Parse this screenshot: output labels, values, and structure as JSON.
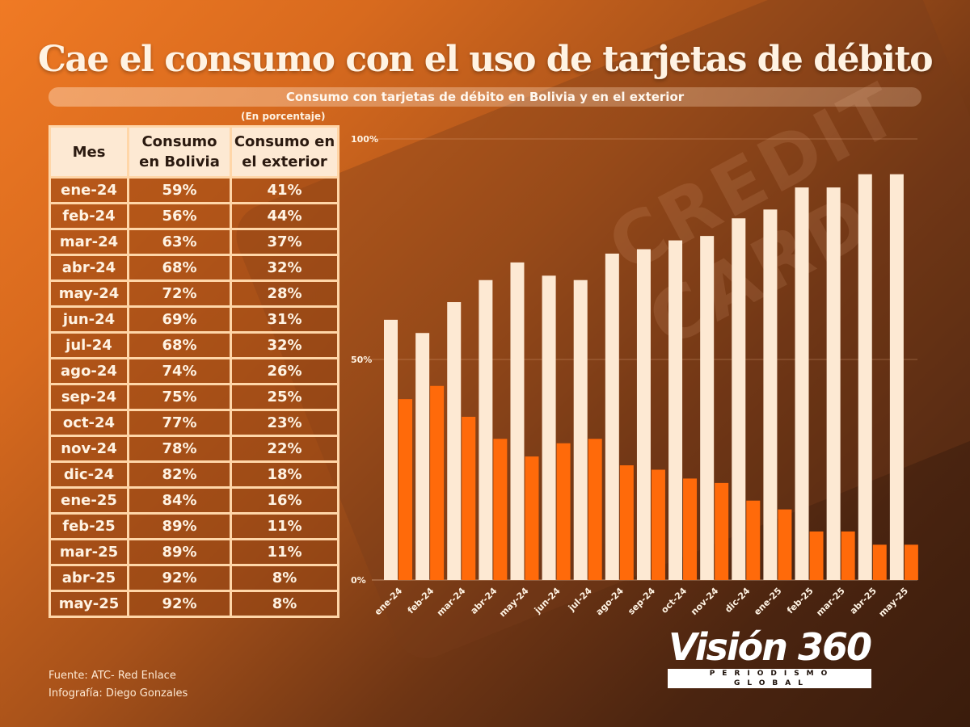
{
  "title": "Cae el consumo con el uso de tarjetas de débito",
  "subtitle": "Consumo con tarjetas de débito en Bolivia y en el exterior",
  "unit_note": "(En porcentaje)",
  "table": {
    "headers": [
      "Mes",
      "Consumo en Bolivia",
      "Consumo en el exterior"
    ],
    "rows": [
      [
        "ene-24",
        "59%",
        "41%"
      ],
      [
        "feb-24",
        "56%",
        "44%"
      ],
      [
        "mar-24",
        "63%",
        "37%"
      ],
      [
        "abr-24",
        "68%",
        "32%"
      ],
      [
        "may-24",
        "72%",
        "28%"
      ],
      [
        "jun-24",
        "69%",
        "31%"
      ],
      [
        "jul-24",
        "68%",
        "32%"
      ],
      [
        "ago-24",
        "74%",
        "26%"
      ],
      [
        "sep-24",
        "75%",
        "25%"
      ],
      [
        "oct-24",
        "77%",
        "23%"
      ],
      [
        "nov-24",
        "78%",
        "22%"
      ],
      [
        "dic-24",
        "82%",
        "18%"
      ],
      [
        "ene-25",
        "84%",
        "16%"
      ],
      [
        "feb-25",
        "89%",
        "11%"
      ],
      [
        "mar-25",
        "89%",
        "11%"
      ],
      [
        "abr-25",
        "92%",
        "8%"
      ],
      [
        "may-25",
        "92%",
        "8%"
      ]
    ]
  },
  "credits": {
    "source": "Fuente: ATC- Red Enlace",
    "author": "Infografía: Diego Gonzales"
  },
  "logo": {
    "name": "Visión 360",
    "tagline": "PERIODISMO GLOBAL"
  },
  "background_watermark": "CREDIT CARD",
  "colors": {
    "bolivia": "#fde9d3",
    "exterior": "#ff6a0a",
    "header_bg": "#fde9d3",
    "border": "#ffd6a8"
  },
  "chart_data": {
    "type": "bar",
    "title": "Consumo con tarjetas de débito en Bolivia y en el exterior",
    "xlabel": "",
    "ylabel": "",
    "ylim": [
      0,
      100
    ],
    "yticks": [
      "0%",
      "50%",
      "100%"
    ],
    "grid": true,
    "categories": [
      "ene-24",
      "feb-24",
      "mar-24",
      "abr-24",
      "may-24",
      "jun-24",
      "jul-24",
      "ago-24",
      "sep-24",
      "oct-24",
      "nov-24",
      "dic-24",
      "ene-25",
      "feb-25",
      "mar-25",
      "abr-25",
      "may-25"
    ],
    "series": [
      {
        "name": "Consumo en Bolivia",
        "values": [
          59,
          56,
          63,
          68,
          72,
          69,
          68,
          74,
          75,
          77,
          78,
          82,
          84,
          89,
          89,
          92,
          92
        ]
      },
      {
        "name": "Consumo en el exterior",
        "values": [
          41,
          44,
          37,
          32,
          28,
          31,
          32,
          26,
          25,
          23,
          22,
          18,
          16,
          11,
          11,
          8,
          8
        ]
      }
    ]
  }
}
